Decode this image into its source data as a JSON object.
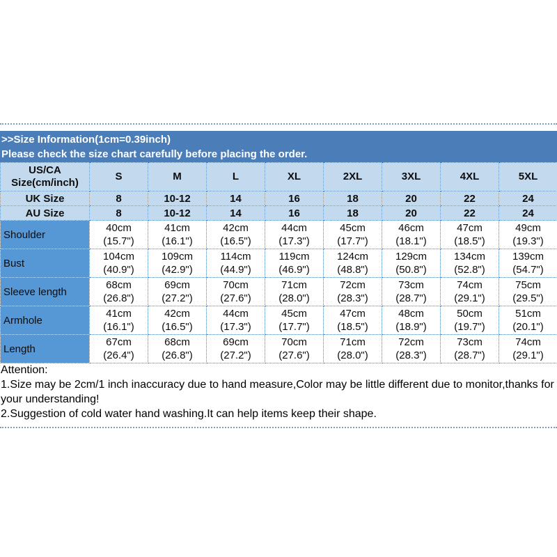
{
  "colors": {
    "header_bar_bg": "#4b7db8",
    "light_row_bg": "#c3d9ee",
    "label_column_bg": "#5697d5",
    "table_border": "#4f81bd",
    "header_text": "#ffffff",
    "body_text": "#0d0d0d"
  },
  "header_bar": {
    "line1": ">>Size Information(1cm=0.39inch)",
    "line2": "Please check the size chart carefully before placing the order."
  },
  "chart_data": {
    "type": "table",
    "title": ">>Size Information(1cm=0.39inch)",
    "corner": {
      "line1": "US/CA",
      "line2": "Size(cm/inch)"
    },
    "columns": [
      "S",
      "M",
      "L",
      "XL",
      "2XL",
      "3XL",
      "4XL",
      "5XL"
    ],
    "size_rows": [
      {
        "label": "UK Size",
        "values": [
          "8",
          "10-12",
          "14",
          "16",
          "18",
          "20",
          "22",
          "24"
        ]
      },
      {
        "label": "AU Size",
        "values": [
          "8",
          "10-12",
          "14",
          "16",
          "18",
          "20",
          "22",
          "24"
        ]
      }
    ],
    "measure_rows": [
      {
        "label": "Shoulder",
        "cm": [
          "40cm",
          "41cm",
          "42cm",
          "44cm",
          "45cm",
          "46cm",
          "47cm",
          "49cm"
        ],
        "inch": [
          "(15.7\")",
          "(16.1\")",
          "(16.5\")",
          "(17.3\")",
          "(17.7\")",
          "(18.1\")",
          "(18.5\")",
          "(19.3\")"
        ]
      },
      {
        "label": "Bust",
        "cm": [
          "104cm",
          "109cm",
          "114cm",
          "119cm",
          "124cm",
          "129cm",
          "134cm",
          "139cm"
        ],
        "inch": [
          "(40.9\")",
          "(42.9\")",
          "(44.9\")",
          "(46.9\")",
          "(48.8\")",
          "(50.8\")",
          "(52.8\")",
          "(54.7\")"
        ]
      },
      {
        "label": "Sleeve length",
        "cm": [
          "68cm",
          "69cm",
          "70cm",
          "71cm",
          "72cm",
          "73cm",
          "74cm",
          "75cm"
        ],
        "inch": [
          "(26.8\")",
          "(27.2\")",
          "(27.6\")",
          "(28.0\")",
          "(28.3\")",
          "(28.7\")",
          "(29.1\")",
          "(29.5\")"
        ]
      },
      {
        "label": "Armhole",
        "cm": [
          "41cm",
          "42cm",
          "44cm",
          "45cm",
          "47cm",
          "48cm",
          "50cm",
          "51cm"
        ],
        "inch": [
          "(16.1\")",
          "(16.5\")",
          "(17.3\")",
          "(17.7\")",
          "(18.5\")",
          "(18.9\")",
          "(19.7\")",
          "(20.1\")"
        ]
      },
      {
        "label": "Length",
        "cm": [
          "67cm",
          "68cm",
          "69cm",
          "70cm",
          "71cm",
          "72cm",
          "73cm",
          "74cm"
        ],
        "inch": [
          "(26.4\")",
          "(26.8\")",
          "(27.2\")",
          "(27.6\")",
          "(28.0\")",
          "(28.3\")",
          "(28.7\")",
          "(29.1\")"
        ]
      }
    ]
  },
  "attention": {
    "title": "Attention:",
    "lines": [
      "1.Size may be 2cm/1 inch inaccuracy due to hand measure,Color may be little different due to monitor,thanks for your understanding!",
      "2.Suggestion of cold water hand washing.It can help items keep their shape."
    ]
  }
}
